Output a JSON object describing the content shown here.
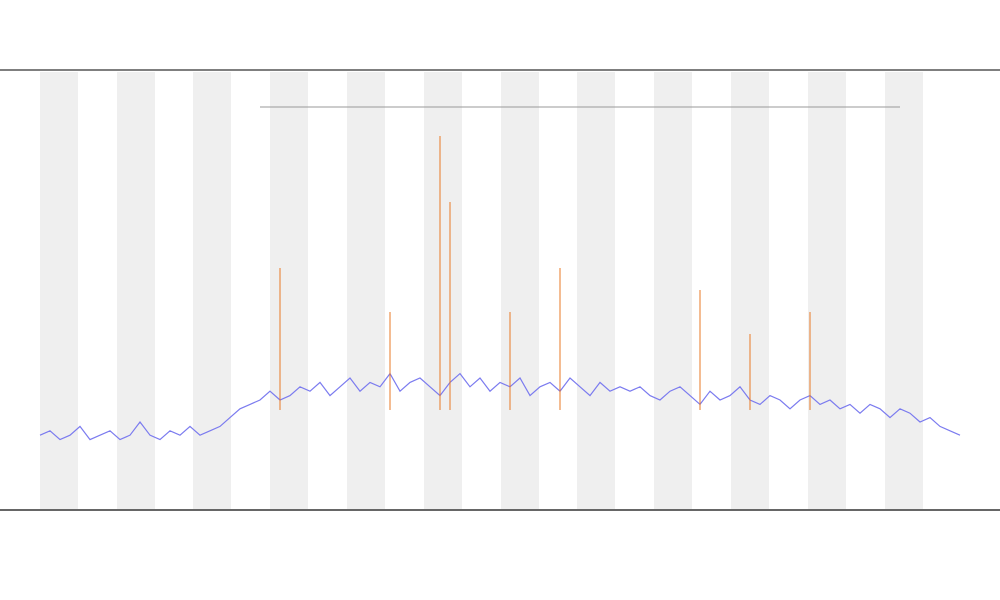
{
  "chart_data": {
    "type": "line",
    "x": [
      0,
      1,
      2,
      3,
      4,
      5,
      6,
      7,
      8,
      9,
      10,
      11,
      12,
      13,
      14,
      15,
      16,
      17,
      18,
      19,
      20,
      21,
      22,
      23,
      24,
      25,
      26,
      27,
      28,
      29,
      30,
      31,
      32,
      33,
      34,
      35,
      36,
      37,
      38,
      39,
      40,
      41,
      42,
      43,
      44,
      45,
      46,
      47,
      48,
      49,
      50,
      51,
      52,
      53,
      54,
      55,
      56,
      57,
      58,
      59,
      60,
      61,
      62,
      63,
      64,
      65,
      66,
      67,
      68,
      69,
      70,
      71,
      72,
      73,
      74,
      75,
      76,
      77,
      78,
      79,
      80,
      81,
      82,
      83,
      84,
      85,
      86,
      87,
      88,
      89,
      90,
      91,
      92
    ],
    "xlim": [
      0,
      92
    ],
    "ylim": [
      0,
      100
    ],
    "series": [
      {
        "color": "#7b7bef",
        "values": [
          17,
          18,
          16,
          17,
          19,
          16,
          17,
          18,
          16,
          17,
          20,
          17,
          16,
          18,
          17,
          19,
          17,
          18,
          19,
          21,
          23,
          24,
          25,
          27,
          25,
          26,
          28,
          27,
          29,
          26,
          28,
          30,
          27,
          29,
          28,
          31,
          27,
          29,
          30,
          28,
          26,
          29,
          31,
          28,
          30,
          27,
          29,
          28,
          30,
          26,
          28,
          29,
          27,
          30,
          28,
          26,
          29,
          27,
          28,
          27,
          28,
          26,
          25,
          27,
          28,
          26,
          24,
          27,
          25,
          26,
          28,
          25,
          24,
          26,
          25,
          23,
          25,
          26,
          24,
          25,
          23,
          24,
          22,
          24,
          23,
          21,
          23,
          22,
          20,
          21,
          19,
          18,
          17
        ]
      },
      {
        "color": "#e8741e",
        "kind": "spike",
        "x": [
          24,
          35,
          40,
          41,
          47,
          52,
          66,
          71,
          77
        ],
        "values": [
          55,
          45,
          85,
          70,
          45,
          55,
          50,
          40,
          45
        ]
      }
    ]
  }
}
